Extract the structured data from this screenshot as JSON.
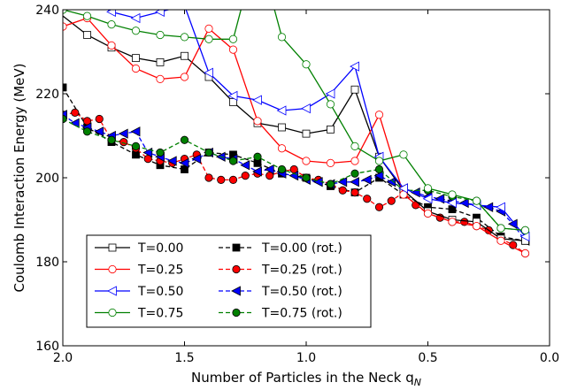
{
  "chart_data": {
    "type": "line",
    "xlabel": "Number of Particles in the Neck q",
    "xlabel_sub": "N",
    "ylabel": "Coulomb Interaction Energy (MeV)",
    "xlim": [
      2.0,
      0.0
    ],
    "ylim": [
      160,
      240
    ],
    "xticks": [
      2.0,
      1.5,
      1.0,
      0.5,
      0.0
    ],
    "xtick_labels": [
      "2.0",
      "1.5",
      "1.0",
      "0.5",
      "0.0"
    ],
    "yticks": [
      160,
      180,
      200,
      220,
      240
    ],
    "ytick_labels": [
      "160",
      "180",
      "200",
      "220",
      "240"
    ],
    "grid": false,
    "legend_position": "lower-left",
    "series": [
      {
        "name": "T=0.00",
        "color": "#000000",
        "dash": false,
        "marker": "square",
        "filled": false,
        "x": [
          2.1,
          1.9,
          1.8,
          1.7,
          1.6,
          1.5,
          1.4,
          1.3,
          1.2,
          1.1,
          1.0,
          0.9,
          0.8,
          0.7,
          0.6,
          0.5,
          0.4,
          0.3,
          0.2,
          0.1
        ],
        "y": [
          243,
          234,
          231,
          228.5,
          227.5,
          229,
          224,
          218,
          213,
          212,
          210.5,
          211.5,
          221,
          205,
          197,
          192,
          190,
          189.5,
          185.5,
          185
        ]
      },
      {
        "name": "T=0.25",
        "color": "#ff0000",
        "dash": false,
        "marker": "circle",
        "filled": false,
        "x": [
          2.0,
          1.9,
          1.8,
          1.7,
          1.6,
          1.5,
          1.4,
          1.3,
          1.2,
          1.1,
          1.0,
          0.9,
          0.8,
          0.7,
          0.6,
          0.5,
          0.4,
          0.3,
          0.2,
          0.1
        ],
        "y": [
          236,
          238,
          231.5,
          226,
          223.5,
          224,
          235.5,
          230.5,
          213.5,
          207,
          204,
          203.5,
          204,
          215,
          196,
          191.5,
          189.5,
          188.5,
          185,
          182
        ]
      },
      {
        "name": "T=0.50",
        "color": "#0000ff",
        "dash": false,
        "marker": "triangle-left",
        "filled": false,
        "x": [
          2.0,
          1.9,
          1.8,
          1.7,
          1.6,
          1.5,
          1.4,
          1.3,
          1.2,
          1.1,
          1.0,
          0.9,
          0.8,
          0.7,
          0.6,
          0.5,
          0.4,
          0.3,
          0.2,
          0.1
        ],
        "y": [
          245,
          243,
          239.5,
          238,
          239.5,
          241,
          225,
          219.5,
          218.5,
          216,
          216.5,
          220,
          226.5,
          205,
          197.5,
          195,
          194,
          193.5,
          193,
          186
        ]
      },
      {
        "name": "T=0.75",
        "color": "#008000",
        "dash": false,
        "marker": "circle",
        "filled": false,
        "x": [
          2.0,
          1.9,
          1.8,
          1.7,
          1.6,
          1.5,
          1.4,
          1.3,
          1.2,
          1.1,
          1.0,
          0.9,
          0.8,
          0.7,
          0.6,
          0.5,
          0.4,
          0.3,
          0.2,
          0.1
        ],
        "y": [
          240,
          238.5,
          236.5,
          235,
          234,
          233.5,
          233,
          233,
          255,
          233.5,
          227,
          217.5,
          207.5,
          204,
          205.5,
          197.5,
          196,
          194.5,
          188,
          187.5
        ]
      },
      {
        "name": "T=0.00 (rot.)",
        "color": "#000000",
        "dash": true,
        "marker": "square",
        "filled": true,
        "x": [
          2.0,
          1.9,
          1.8,
          1.7,
          1.6,
          1.5,
          1.4,
          1.3,
          1.2,
          1.1,
          1.0,
          0.9,
          0.8,
          0.7,
          0.6,
          0.5,
          0.4,
          0.3,
          0.2,
          0.1
        ],
        "y": [
          221.5,
          212,
          208.5,
          205.5,
          203,
          202,
          206,
          205.5,
          203.5,
          201,
          200,
          198,
          196.5,
          200,
          196,
          193,
          192.5,
          190.5,
          186,
          185
        ]
      },
      {
        "name": "T=0.25 (rot.)",
        "color": "#ff0000",
        "dash": true,
        "marker": "circle",
        "filled": true,
        "x": [
          2.0,
          1.95,
          1.9,
          1.85,
          1.8,
          1.75,
          1.7,
          1.65,
          1.6,
          1.55,
          1.5,
          1.45,
          1.4,
          1.35,
          1.3,
          1.25,
          1.2,
          1.15,
          1.1,
          1.05,
          1.0,
          0.95,
          0.9,
          0.85,
          0.8,
          0.75,
          0.7,
          0.65,
          0.6,
          0.55,
          0.5,
          0.45,
          0.4,
          0.35,
          0.3,
          0.25,
          0.2,
          0.15,
          0.1
        ],
        "y": [
          215,
          215.5,
          213.5,
          214,
          209,
          208.5,
          207,
          204.5,
          204,
          203.5,
          204.5,
          205.5,
          200,
          199.5,
          199.5,
          200.5,
          201,
          200.5,
          201.5,
          202,
          200,
          199.5,
          198.5,
          197,
          196.5,
          195,
          193,
          194.5,
          196.5,
          193.5,
          191.5,
          190.5,
          189.5,
          189.5,
          188.5,
          187.5,
          185.5,
          184,
          182
        ]
      },
      {
        "name": "T=0.50 (rot.)",
        "color": "#0000ff",
        "dash": true,
        "marker": "triangle-left",
        "filled": true,
        "x": [
          2.0,
          1.95,
          1.9,
          1.85,
          1.8,
          1.75,
          1.7,
          1.65,
          1.6,
          1.55,
          1.5,
          1.45,
          1.4,
          1.35,
          1.3,
          1.25,
          1.2,
          1.15,
          1.1,
          1.05,
          1.0,
          0.95,
          0.9,
          0.85,
          0.8,
          0.75,
          0.7,
          0.65,
          0.6,
          0.55,
          0.5,
          0.45,
          0.4,
          0.35,
          0.3,
          0.25,
          0.2,
          0.15,
          0.1
        ],
        "y": [
          215,
          213,
          212,
          211,
          210,
          210.5,
          211,
          206,
          205,
          204,
          203.5,
          204.5,
          206,
          205,
          204.5,
          203,
          201.5,
          202,
          201,
          200.5,
          199.5,
          199,
          198.5,
          199,
          199,
          199.5,
          200.5,
          199,
          197.5,
          196.5,
          195.5,
          195,
          194.5,
          194,
          193.5,
          193,
          192,
          189,
          185
        ]
      },
      {
        "name": "T=0.75 (rot.)",
        "color": "#008000",
        "dash": true,
        "marker": "circle",
        "filled": true,
        "x": [
          2.0,
          1.9,
          1.8,
          1.7,
          1.6,
          1.5,
          1.4,
          1.3,
          1.2,
          1.1,
          1.0,
          0.9,
          0.8,
          0.7,
          0.6,
          0.5,
          0.4,
          0.3,
          0.2,
          0.1
        ],
        "y": [
          214,
          211,
          209,
          207.5,
          206,
          209,
          206,
          204,
          205,
          202,
          200,
          198.5,
          201,
          202,
          197,
          197,
          195.5,
          194.5,
          188,
          187.5
        ]
      }
    ]
  }
}
